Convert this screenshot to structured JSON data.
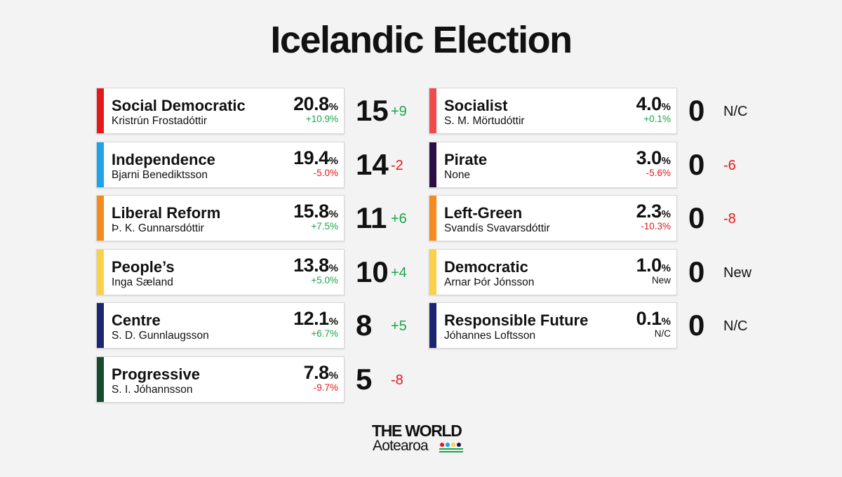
{
  "title": "Icelandic Election",
  "left_column": [
    {
      "name": "Social Democratic",
      "leader": "Kristrún Frostadóttir",
      "vote_pct": "20.8",
      "pct_sign": "%",
      "vote_change": "+10.9%",
      "vote_change_color": "#1aa54a",
      "seats": "15",
      "seat_change": "+9",
      "seat_change_color": "#1aa54a",
      "color": "#e4181b"
    },
    {
      "name": "Independence",
      "leader": "Bjarni Benediktsson",
      "vote_pct": "19.4",
      "pct_sign": "%",
      "vote_change": "-5.0%",
      "vote_change_color": "#e3171b",
      "seats": "14",
      "seat_change": "-2",
      "seat_change_color": "#e3171b",
      "color": "#1ca3e8"
    },
    {
      "name": "Liberal Reform",
      "leader": "Þ. K. Gunnarsdóttir",
      "vote_pct": "15.8",
      "pct_sign": "%",
      "vote_change": "+7.5%",
      "vote_change_color": "#1aa54a",
      "seats": "11",
      "seat_change": "+6",
      "seat_change_color": "#1aa54a",
      "color": "#f58a1f"
    },
    {
      "name": "People’s",
      "leader": "Inga Sæland",
      "vote_pct": "13.8",
      "pct_sign": "%",
      "vote_change": "+5.0%",
      "vote_change_color": "#1aa54a",
      "seats": "10",
      "seat_change": "+4",
      "seat_change_color": "#1aa54a",
      "color": "#fbd14b"
    },
    {
      "name": "Centre",
      "leader": "S. D. Gunnlaugsson",
      "vote_pct": "12.1",
      "pct_sign": "%",
      "vote_change": "+6.7%",
      "vote_change_color": "#1aa54a",
      "seats": "8",
      "seat_change": "+5",
      "seat_change_color": "#1aa54a",
      "color": "#1b2570"
    },
    {
      "name": "Progressive",
      "leader": "S. I. Jóhannsson",
      "vote_pct": "7.8",
      "pct_sign": "%",
      "vote_change": "-9.7%",
      "vote_change_color": "#e3171b",
      "seats": "5",
      "seat_change": "-8",
      "seat_change_color": "#e3171b",
      "color": "#154a2c"
    }
  ],
  "right_column": [
    {
      "name": "Socialist",
      "leader": "S. M. Mörtudóttir",
      "vote_pct": "4.0",
      "pct_sign": "%",
      "vote_change": "+0.1%",
      "vote_change_color": "#1aa54a",
      "seats": "0",
      "seat_change": "N/C",
      "seat_change_color": "#111111",
      "color": "#ef4b4b"
    },
    {
      "name": "Pirate",
      "leader": "None",
      "vote_pct": "3.0",
      "pct_sign": "%",
      "vote_change": "-5.6%",
      "vote_change_color": "#e3171b",
      "seats": "0",
      "seat_change": "-6",
      "seat_change_color": "#e3171b",
      "color": "#2b0e44"
    },
    {
      "name": "Left-Green",
      "leader": "Svandís Svavarsdóttir",
      "vote_pct": "2.3",
      "pct_sign": "%",
      "vote_change": "-10.3%",
      "vote_change_color": "#e3171b",
      "seats": "0",
      "seat_change": "-8",
      "seat_change_color": "#e3171b",
      "color": "#f58a1f"
    },
    {
      "name": "Democratic",
      "leader": "Arnar Þór Jónsson",
      "vote_pct": "1.0",
      "pct_sign": "%",
      "vote_change": "New",
      "vote_change_color": "#111111",
      "seats": "0",
      "seat_change": "New",
      "seat_change_color": "#111111",
      "color": "#fbd14b"
    },
    {
      "name": "Responsible Future",
      "leader": "Jóhannes Loftsson",
      "vote_pct": "0.1",
      "pct_sign": "%",
      "vote_change": "N/C",
      "vote_change_color": "#111111",
      "seats": "0",
      "seat_change": "N/C",
      "seat_change_color": "#111111",
      "color": "#1b2570"
    }
  ],
  "logo": {
    "line1": "THE WORLD",
    "line2": "Aotearoa"
  }
}
